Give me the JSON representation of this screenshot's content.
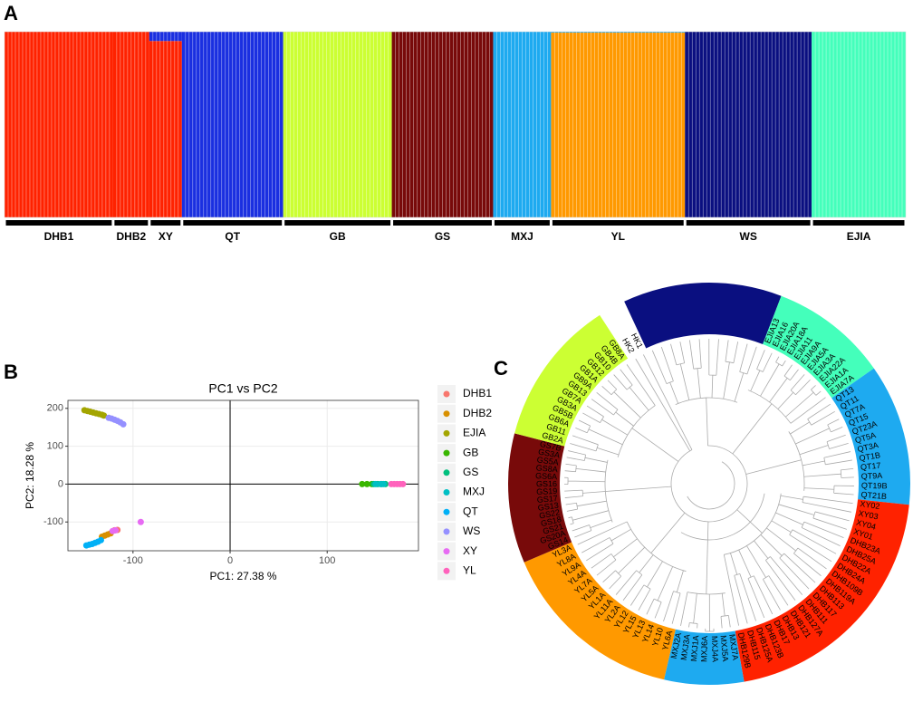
{
  "chart_data": [
    {
      "type": "structure",
      "panel": "A",
      "categories": [
        "DHB1",
        "DHB2",
        "XY",
        "QT",
        "GB",
        "GS",
        "MXJ",
        "YL",
        "WS",
        "EJIA"
      ],
      "sizes": [
        30,
        10,
        9,
        28,
        30,
        28,
        16,
        37,
        35,
        26
      ],
      "ylim": [
        0,
        1
      ],
      "series": [
        {
          "color": "#ff2200",
          "values": [
            1,
            1,
            0.95,
            0,
            0,
            0,
            0,
            0,
            0,
            0
          ]
        },
        {
          "color": "#1a2fe0",
          "values": [
            0,
            0,
            0.05,
            1,
            0,
            0,
            0,
            0,
            0,
            0
          ]
        },
        {
          "color": "#ccff33",
          "values": [
            0,
            0,
            0,
            0,
            1,
            0,
            0,
            0,
            0,
            0
          ]
        },
        {
          "color": "#780a0a",
          "values": [
            0,
            0,
            0,
            0,
            0,
            1,
            0,
            0,
            0,
            0
          ]
        },
        {
          "color": "#ff9900",
          "values": [
            0,
            0,
            0,
            0,
            0,
            0,
            0,
            0.995,
            0,
            0
          ]
        },
        {
          "color": "#1eaaf0",
          "values": [
            0,
            0,
            0,
            0,
            0,
            0,
            1,
            0.005,
            0,
            0
          ]
        },
        {
          "color": "#0a0f80",
          "values": [
            0,
            0,
            0,
            0,
            0,
            0,
            0,
            0,
            1,
            0
          ]
        },
        {
          "color": "#44ffbb",
          "values": [
            0,
            0,
            0,
            0,
            0,
            0,
            0,
            0,
            0,
            1
          ]
        }
      ]
    },
    {
      "type": "scatter",
      "panel": "B",
      "title": "PC1 vs PC2",
      "x_label": "PC1:  27.38 %",
      "y_label": "PC2:  18.28 %",
      "xlim": [
        -167,
        194
      ],
      "ylim": [
        -176,
        221
      ],
      "xticks": [
        -100,
        0,
        100
      ],
      "yticks": [
        -100,
        0,
        100,
        200
      ],
      "grid": true,
      "vline": 0,
      "hline": 0,
      "legend": "right",
      "series": [
        {
          "name": "DHB1",
          "color": "#F8766D",
          "x": [
            -119,
            -116
          ],
          "y": [
            -122,
            -121
          ]
        },
        {
          "name": "DHB2",
          "color": "#D89000",
          "x": [
            -132,
            -129,
            -126,
            -123
          ],
          "y": [
            -139,
            -136,
            -133,
            -130
          ]
        },
        {
          "name": "EJIA",
          "color": "#A3A500",
          "x": [
            -150,
            -147,
            -144,
            -141,
            -138,
            -135,
            -132,
            -130
          ],
          "y": [
            195,
            193,
            191,
            189,
            187,
            185,
            183,
            181
          ]
        },
        {
          "name": "GB",
          "color": "#39B600",
          "x": [
            136,
            141,
            146
          ],
          "y": [
            0,
            0,
            0
          ]
        },
        {
          "name": "GS",
          "color": "#00BF7D",
          "x": [
            148,
            152,
            156,
            160
          ],
          "y": [
            0,
            0,
            0,
            0
          ]
        },
        {
          "name": "MXJ",
          "color": "#00BFC4",
          "x": [
            150,
            155,
            158
          ],
          "y": [
            0,
            0,
            0
          ]
        },
        {
          "name": "QT",
          "color": "#00B0F6",
          "x": [
            -148,
            -145,
            -142,
            -139,
            -136,
            -133
          ],
          "y": [
            -162,
            -160,
            -158,
            -155,
            -152,
            -148
          ]
        },
        {
          "name": "WS",
          "color": "#9590FF",
          "x": [
            -125,
            -122,
            -119,
            -116,
            -113,
            -110
          ],
          "y": [
            175,
            173,
            170,
            167,
            163,
            158
          ]
        },
        {
          "name": "XY",
          "color": "#E76BF3",
          "x": [
            -121,
            -118,
            -92
          ],
          "y": [
            -124,
            -122,
            -100
          ]
        },
        {
          "name": "YL",
          "color": "#FF62BC",
          "x": [
            166,
            169,
            172,
            175,
            178
          ],
          "y": [
            0,
            0,
            0,
            0,
            0
          ]
        }
      ]
    },
    {
      "type": "tree",
      "panel": "C",
      "clades": [
        {
          "color": "#0a0f80"
        },
        {
          "color": "#44ffbb",
          "labels": [
            "EJIA13",
            "EJIA16",
            "EJIA20A",
            "EJIA18A",
            "EJIA11",
            "EJIA9A",
            "EJIA5A",
            "EJIA3A",
            "EJIA22A",
            "EJIA1A",
            "EJIA7A"
          ]
        },
        {
          "color": "#1eaaf0",
          "labels": [
            "QT13",
            "QT11",
            "QT7A",
            "QT15",
            "QT23A",
            "QT5A",
            "QT3A",
            "QT1B",
            "QT17",
            "QT9A",
            "QT19B",
            "QT21B"
          ]
        },
        {
          "color": "#ff2200",
          "labels": [
            "XY02",
            "XY03",
            "XY04",
            "XY01",
            "DHB23A",
            "DHB25A",
            "DHB22A",
            "DHB24A",
            "DHB109B",
            "DHB119A",
            "DHB113",
            "DHB117",
            "DHB111",
            "DHB127A",
            "DHB121",
            "DHB13",
            "DHB17",
            "DHB123B",
            "DHB125A",
            "DHB115",
            "DHB129B"
          ]
        },
        {
          "color": "#1eaaf0",
          "labels": [
            "MXJ7A",
            "MXJ5A",
            "MXJ4A",
            "MXJ6A",
            "MXJ1A",
            "MXJ3A",
            "MXJ2A"
          ]
        },
        {
          "color": "#ff9900",
          "labels": [
            "YL6A",
            "YL10",
            "YL14",
            "YL13",
            "YL15",
            "YL12",
            "YL2A",
            "YL11A",
            "YL1A",
            "YL5A",
            "YL7A",
            "YL4A",
            "YL9A",
            "YL8A",
            "YL3A"
          ]
        },
        {
          "color": "#780a0a",
          "labels": [
            "GS14",
            "GS20A",
            "GS21",
            "GS18",
            "GS22",
            "GS13",
            "GS17",
            "GS19",
            "GS16",
            "GS6A",
            "GS8A",
            "GS5A",
            "GS3A",
            "GS7B"
          ]
        },
        {
          "color": "#ccff33",
          "labels": [
            "GB2A",
            "GB11",
            "GB6A",
            "GB5B",
            "GB3A",
            "GB7A",
            "GB13",
            "GB9A",
            "GB1A",
            "GB12",
            "GB10",
            "GB4B",
            "GB8A"
          ]
        }
      ],
      "outgroup": [
        "HK2",
        "HK1"
      ]
    }
  ]
}
